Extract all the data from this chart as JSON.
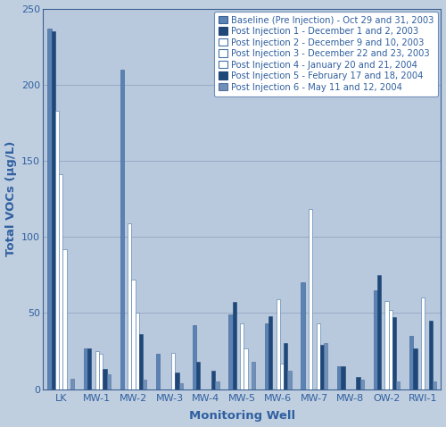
{
  "categories": [
    "LK",
    "MW-1",
    "MW-2",
    "MW-3",
    "MW-4",
    "MW-5",
    "MW-6",
    "MW-7",
    "MW-8",
    "OW-2",
    "RWI-1"
  ],
  "series": [
    {
      "label": "Baseline (Pre Injection) - Oct 29 and 31, 2003",
      "color": "#5b82b5",
      "edgecolor": "#3a6090",
      "hatch": "",
      "values": [
        237,
        27,
        210,
        23,
        42,
        49,
        43,
        70,
        15,
        65,
        35
      ]
    },
    {
      "label": "Post Injection 1 - December 1 and 2, 2003",
      "color": "#1f4778",
      "edgecolor": "#1f4778",
      "hatch": "",
      "values": [
        235,
        27,
        0,
        0,
        18,
        57,
        48,
        0,
        15,
        75,
        27
      ]
    },
    {
      "label": "Post Injection 2 - December 9 and 10, 2003",
      "color": "#ffffff",
      "edgecolor": "#4472a4",
      "hatch": "",
      "values": [
        183,
        0,
        109,
        0,
        0,
        0,
        0,
        118,
        0,
        0,
        0
      ]
    },
    {
      "label": "Post Injection 3 - December 22 and 23, 2003",
      "color": "#ffffff",
      "edgecolor": "#4472a4",
      "hatch": "",
      "values": [
        141,
        25,
        72,
        0,
        0,
        43,
        59,
        0,
        0,
        58,
        60
      ]
    },
    {
      "label": "Post Injection 4 - January 20 and 21, 2004",
      "color": "#ffffff",
      "edgecolor": "#4472a4",
      "hatch": "",
      "values": [
        92,
        23,
        50,
        24,
        0,
        27,
        17,
        43,
        0,
        52,
        0
      ]
    },
    {
      "label": "Post Injection 5 - February 17 and 18, 2004",
      "color": "#1f4778",
      "edgecolor": "#1f4778",
      "hatch": "",
      "values": [
        0,
        13,
        36,
        11,
        12,
        0,
        30,
        29,
        8,
        47,
        45
      ]
    },
    {
      "label": "Post Injection 6 - May 11 and 12, 2004",
      "color": "#7090b8",
      "edgecolor": "#5070a0",
      "hatch": "",
      "values": [
        7,
        10,
        6,
        4,
        5,
        18,
        12,
        30,
        6,
        5,
        5
      ]
    }
  ],
  "ylabel": "Total VOCs (μg/L)",
  "xlabel": "Monitoring Well",
  "ylim": [
    0,
    250
  ],
  "yticks": [
    0,
    50,
    100,
    150,
    200,
    250
  ],
  "background_color": "#c0cfe0",
  "plot_background_color": "#b8c9de",
  "grid_color": "#9aaac4",
  "title": "",
  "legend_fontsize": 7.2,
  "axis_label_fontsize": 9.5,
  "tick_fontsize": 8
}
